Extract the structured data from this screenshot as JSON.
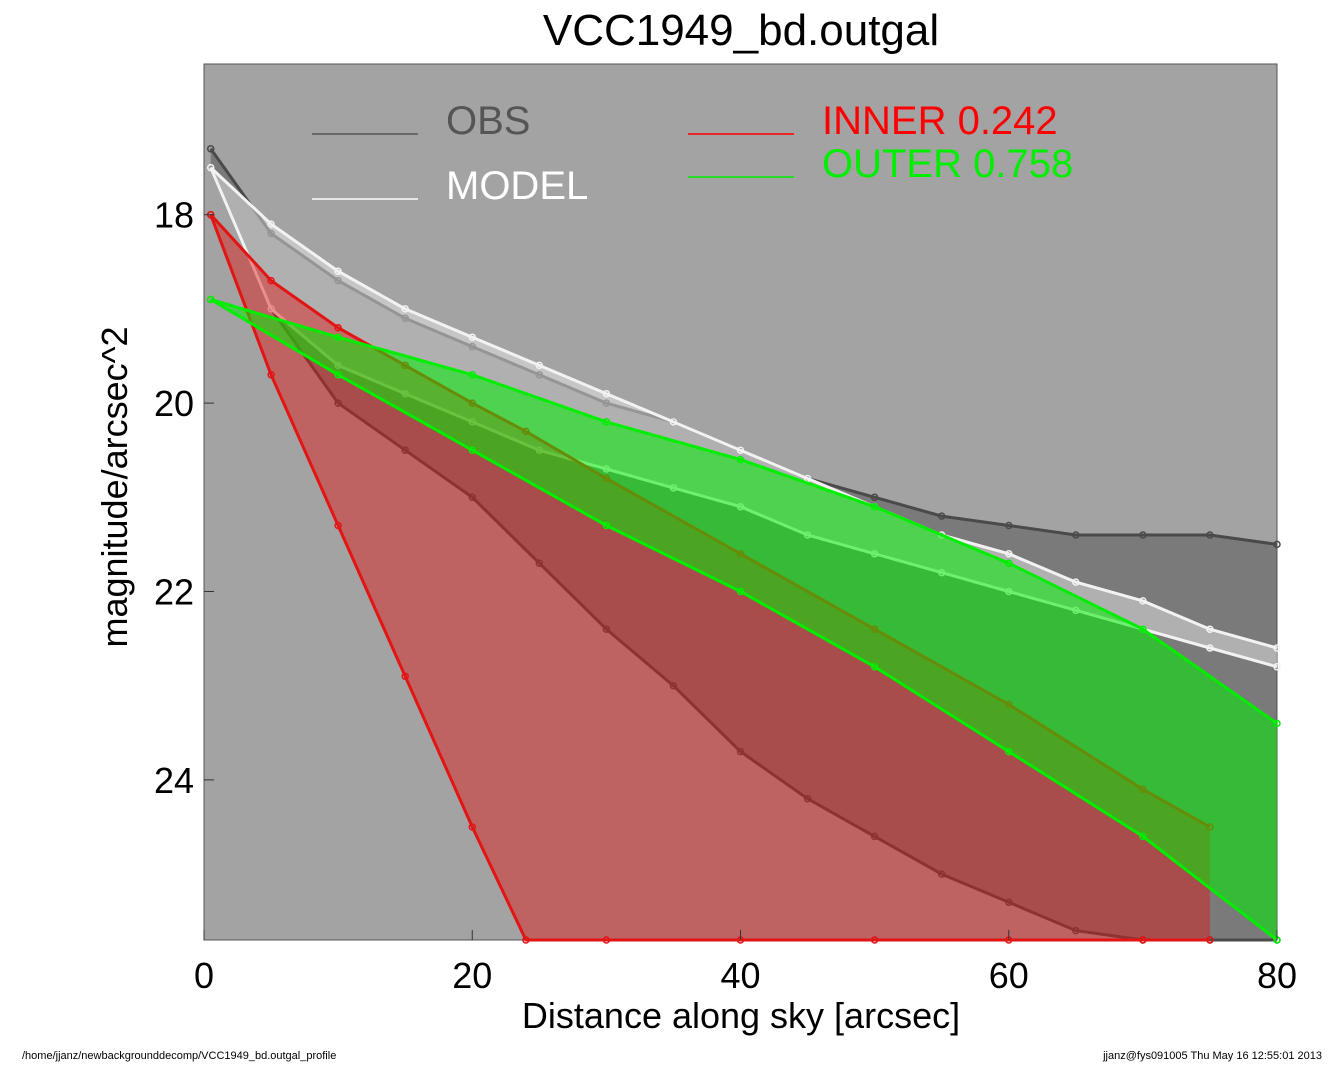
{
  "chart_data": {
    "type": "scatter",
    "title": "VCC1949_bd.outgal",
    "xlabel": "Distance along sky [arcsec]",
    "ylabel": "magnitude/arcsec^2",
    "xlim": [
      0,
      80
    ],
    "ylim": [
      25.7,
      16.4
    ],
    "y_inverted": true,
    "xticks": [
      0,
      20,
      40,
      60,
      80
    ],
    "yticks": [
      18,
      20,
      22,
      24
    ],
    "background": "#a3a3a3",
    "legend": [
      {
        "label": "OBS",
        "color": "#555555"
      },
      {
        "label": "MODEL",
        "color": "#ffffff"
      },
      {
        "label": "INNER  0.242",
        "color": "#ff0000"
      },
      {
        "label": "OUTER  0.758",
        "color": "#00ee00"
      }
    ],
    "series": [
      {
        "name": "OBS",
        "color": "#4a4a4a",
        "x": [
          0.5,
          5,
          10,
          15,
          20,
          25,
          30,
          35,
          40,
          45,
          50,
          55,
          60,
          65,
          70,
          75,
          80
        ],
        "y_upper": [
          17.3,
          18.2,
          18.7,
          19.1,
          19.4,
          19.7,
          20.0,
          20.2,
          20.5,
          20.8,
          21.0,
          21.2,
          21.3,
          21.4,
          21.4,
          21.4,
          21.5
        ],
        "y_lower": [
          17.5,
          19.0,
          20.0,
          20.5,
          21.0,
          21.7,
          22.4,
          23.0,
          23.7,
          24.2,
          24.6,
          25.0,
          25.3,
          25.6,
          25.7,
          25.7,
          25.7
        ]
      },
      {
        "name": "MODEL",
        "color": "#f2f2f2",
        "x": [
          0.5,
          5,
          10,
          15,
          20,
          25,
          30,
          35,
          40,
          45,
          50,
          55,
          60,
          65,
          70,
          75,
          80
        ],
        "y_upper": [
          17.5,
          18.1,
          18.6,
          19.0,
          19.3,
          19.6,
          19.9,
          20.2,
          20.5,
          20.8,
          21.1,
          21.4,
          21.6,
          21.9,
          22.1,
          22.4,
          22.6
        ],
        "y_lower": [
          17.5,
          19.0,
          19.6,
          19.9,
          20.2,
          20.5,
          20.7,
          20.9,
          21.1,
          21.4,
          21.6,
          21.8,
          22.0,
          22.2,
          22.4,
          22.6,
          22.8
        ]
      },
      {
        "name": "INNER  0.242",
        "color": "#e21414",
        "x": [
          0.5,
          5,
          10,
          15,
          20,
          24,
          30,
          40,
          50,
          60,
          70,
          75
        ],
        "y_upper": [
          18.0,
          18.7,
          19.2,
          19.6,
          20.0,
          20.3,
          20.8,
          21.6,
          22.4,
          23.2,
          24.1,
          24.5
        ],
        "y_lower": [
          18.0,
          19.7,
          21.3,
          22.9,
          24.5,
          25.7,
          25.7,
          25.7,
          25.7,
          25.7,
          25.7,
          25.7
        ]
      },
      {
        "name": "OUTER  0.758",
        "color": "#00ee00",
        "x": [
          0.5,
          10,
          20,
          30,
          40,
          50,
          60,
          70,
          80
        ],
        "y_upper": [
          18.9,
          19.3,
          19.7,
          20.2,
          20.6,
          21.1,
          21.7,
          22.4,
          23.4
        ],
        "y_lower": [
          18.9,
          19.7,
          20.5,
          21.3,
          22.0,
          22.8,
          23.7,
          24.6,
          25.7
        ]
      }
    ]
  },
  "footer": {
    "path": "/home/jjanz/newbackgrounddecomp/VCC1949_bd.outgal_profile",
    "stamp": "jjanz@fys091005  Thu May 16 12:55:01 2013"
  }
}
